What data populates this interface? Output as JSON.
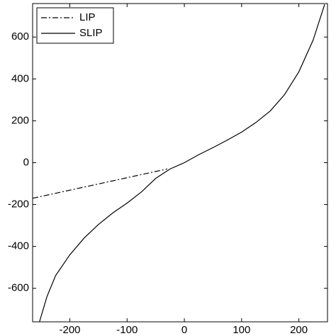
{
  "chart_data": {
    "type": "line",
    "xlim": [
      -265,
      250
    ],
    "xticks": [
      -200,
      -100,
      0,
      100,
      200
    ],
    "ylim": [
      -760,
      760
    ],
    "yticks": [
      -600,
      -400,
      -200,
      0,
      200,
      400,
      600
    ],
    "legend": "upper left",
    "series": [
      {
        "name": "LIP",
        "color": "#000000",
        "linestyle": "dashdot",
        "x": [
          -265,
          -30
        ],
        "values": [
          -170,
          -30
        ]
      },
      {
        "name": "SLIP",
        "color": "#000000",
        "linestyle": "solid",
        "x": [
          -253,
          -240,
          -225,
          -200,
          -175,
          -150,
          -125,
          -100,
          -75,
          -50,
          -25,
          0,
          25,
          50,
          75,
          100,
          125,
          150,
          175,
          200,
          225,
          245
        ],
        "values": [
          -760,
          -640,
          -540,
          -440,
          -360,
          -295,
          -240,
          -193,
          -140,
          -75,
          -30,
          0,
          38,
          72,
          108,
          146,
          192,
          247,
          325,
          434,
          586,
          756
        ]
      }
    ]
  }
}
